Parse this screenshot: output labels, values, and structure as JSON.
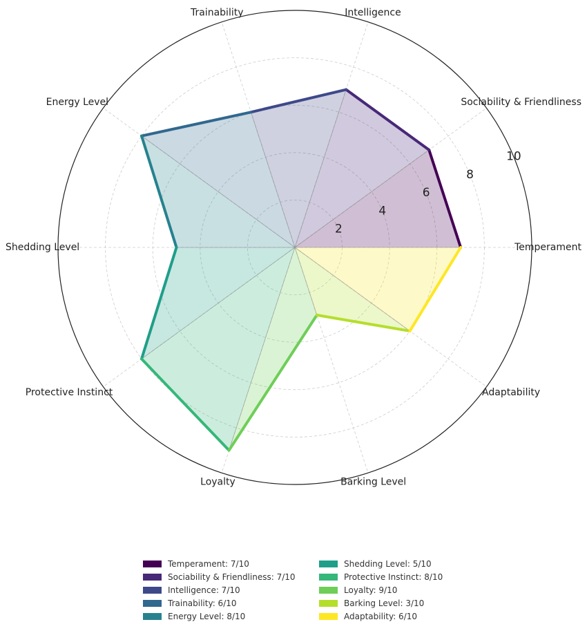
{
  "chart_data": {
    "type": "radar",
    "title": "",
    "categories": [
      "Temperament",
      "Sociability & Friendliness",
      "Intelligence",
      "Trainability",
      "Energy Level",
      "Shedding Level",
      "Protective Instinct",
      "Loyalty",
      "Barking Level",
      "Adaptability"
    ],
    "values": [
      7,
      7,
      7,
      6,
      8,
      5,
      8,
      9,
      3,
      6
    ],
    "colors": [
      "#440154",
      "#482878",
      "#3e4989",
      "#31688e",
      "#26828e",
      "#1f9e89",
      "#35b779",
      "#6ece58",
      "#b5de2b",
      "#fde725"
    ],
    "rmax": 10,
    "radial_ticks": [
      2,
      4,
      6,
      8,
      10
    ],
    "grid": true,
    "legend_labels": [
      "Temperament: 7/10",
      "Sociability & Friendliness: 7/10",
      "Intelligence: 7/10",
      "Trainability: 6/10",
      "Energy Level: 8/10",
      "Shedding Level: 5/10",
      "Protective Instinct: 8/10",
      "Loyalty: 9/10",
      "Barking Level: 3/10",
      "Adaptability: 6/10"
    ],
    "legend_position": "bottom-center"
  }
}
